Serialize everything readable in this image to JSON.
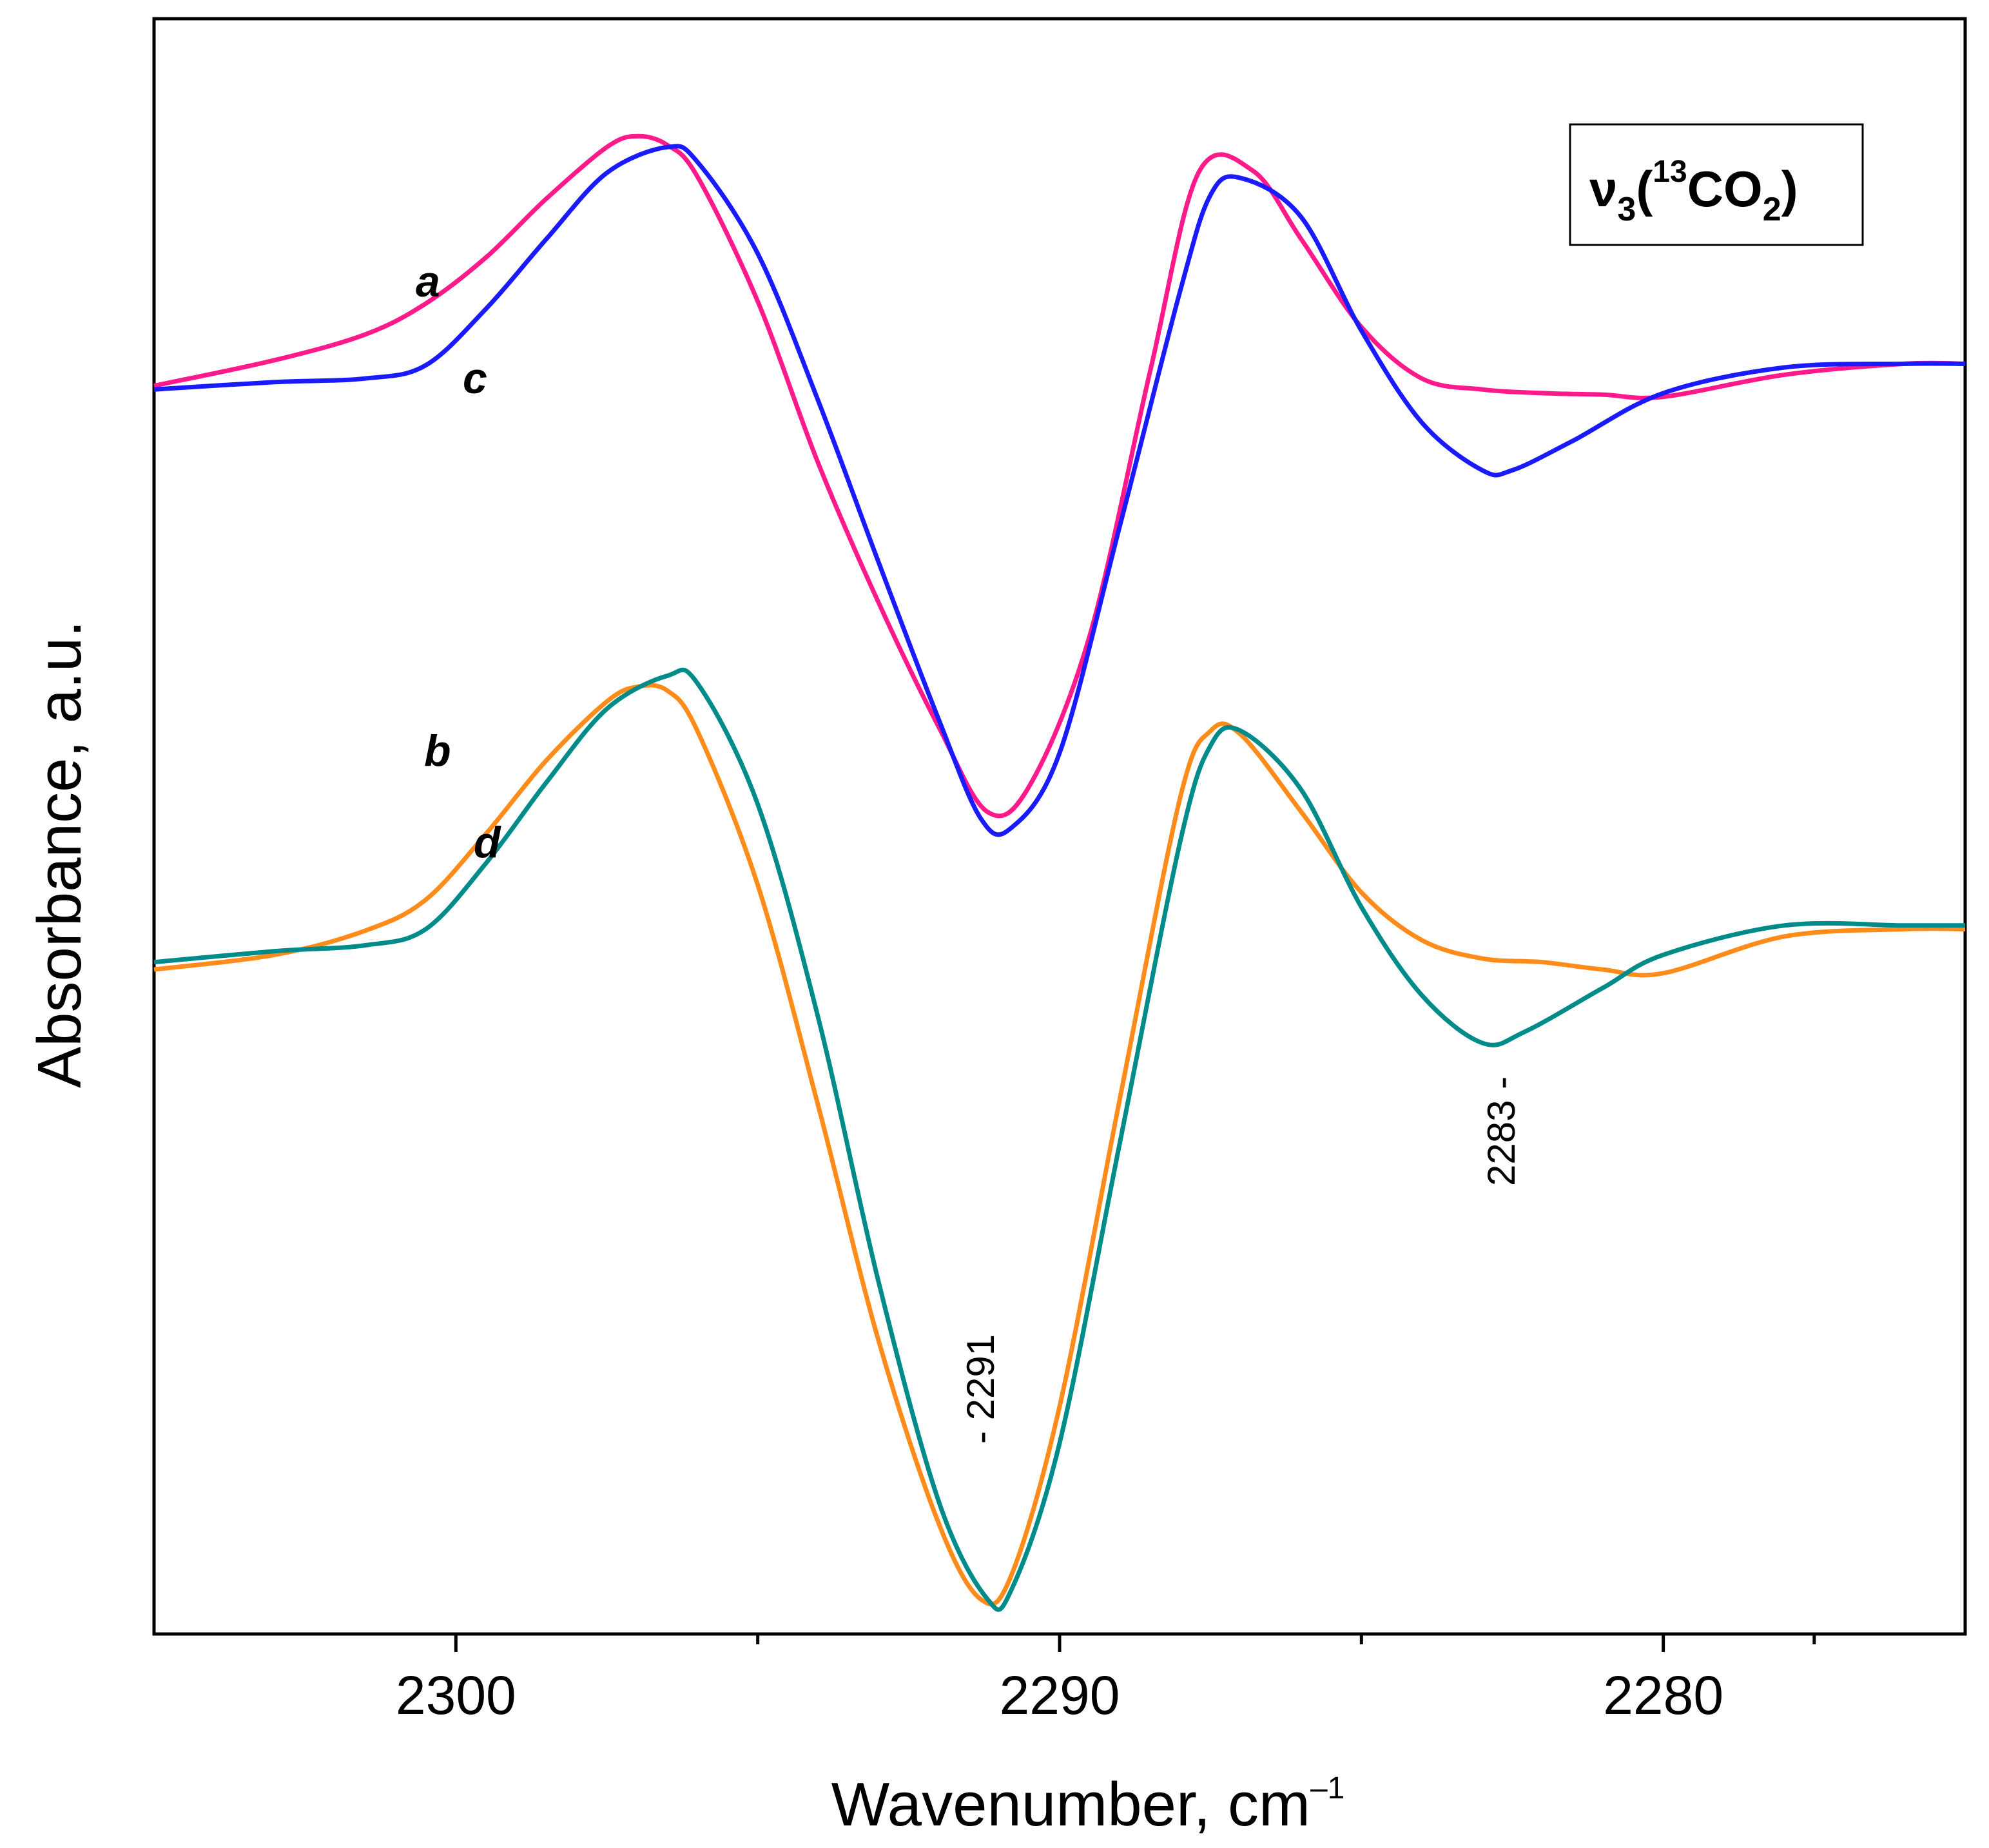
{
  "chart_data": {
    "type": "line",
    "title": "",
    "xlabel": "Wavenumber, cm",
    "xlabel_sup": "–1",
    "ylabel": "Absorbance, a.u.",
    "xlim": [
      2305,
      2275
    ],
    "x_reversed": true,
    "ylim": [
      -1.0,
      1.2
    ],
    "ticks": {
      "major": [
        2300,
        2290,
        2280
      ],
      "major_labels": [
        "2300",
        "2290",
        "2280"
      ],
      "minor": [
        2295,
        2285,
        2277.5
      ]
    },
    "legend_box": {
      "nu": "ν",
      "sub3": "3",
      "paren_open": "(",
      "sup13": "13",
      "co": "CO",
      "sub2": "2",
      "paren_close": ")"
    },
    "annotations": [
      {
        "text": "- 2291",
        "x": 2291,
        "rotated": true
      },
      {
        "text": "2283 -",
        "x": 2283,
        "rotated": true
      }
    ],
    "series": [
      {
        "name": "a",
        "color": "#ff1a8c",
        "x": [
          2305,
          2303,
          2301.5,
          2300.5,
          2299.5,
          2298.5,
          2297.5,
          2297,
          2296.5,
          2296,
          2295,
          2294,
          2293,
          2292,
          2291.2,
          2290.5,
          2289.5,
          2288.5,
          2287.7,
          2286.8,
          2286,
          2285,
          2284,
          2283,
          2282,
          2281,
          2280,
          2278,
          2276,
          2275
        ],
        "y": [
          0.7,
          0.735,
          0.77,
          0.812,
          0.875,
          0.955,
          1.025,
          1.04,
          1.028,
          0.985,
          0.815,
          0.595,
          0.405,
          0.235,
          0.12,
          0.155,
          0.36,
          0.72,
          0.99,
          0.993,
          0.9,
          0.78,
          0.71,
          0.695,
          0.69,
          0.688,
          0.685,
          0.715,
          0.73,
          0.73
        ]
      },
      {
        "name": "c",
        "color": "#1a1aff",
        "x": [
          2305,
          2303,
          2301.5,
          2300.5,
          2299.5,
          2298.5,
          2297.5,
          2296.5,
          2296,
          2295,
          2294,
          2293,
          2292,
          2291.3,
          2290.8,
          2290,
          2289,
          2288,
          2287.5,
          2287,
          2286,
          2285,
          2284,
          2283,
          2282.5,
          2281.5,
          2280,
          2278,
          2276,
          2275
        ],
        "y": [
          0.695,
          0.705,
          0.71,
          0.728,
          0.805,
          0.9,
          0.99,
          1.025,
          1.005,
          0.88,
          0.68,
          0.46,
          0.245,
          0.11,
          0.098,
          0.2,
          0.51,
          0.83,
          0.96,
          0.983,
          0.93,
          0.775,
          0.65,
          0.585,
          0.585,
          0.625,
          0.69,
          0.725,
          0.73,
          0.73
        ]
      },
      {
        "name": "b",
        "color": "#ff8c1a",
        "x": [
          2305,
          2303,
          2301.5,
          2300.5,
          2299.5,
          2298.5,
          2297.5,
          2297,
          2296.5,
          2296,
          2295,
          2294,
          2293,
          2292,
          2291.3,
          2290.8,
          2290,
          2289,
          2288,
          2287.5,
          2287,
          2286,
          2285,
          2284,
          2283,
          2282,
          2281,
          2280,
          2278,
          2276,
          2275
        ],
        "y": [
          -0.095,
          -0.075,
          -0.042,
          0.0,
          0.09,
          0.19,
          0.27,
          0.29,
          0.285,
          0.23,
          0.02,
          -0.28,
          -0.6,
          -0.85,
          -0.953,
          -0.92,
          -0.69,
          -0.27,
          0.14,
          0.23,
          0.225,
          0.12,
          0.01,
          -0.055,
          -0.08,
          -0.085,
          -0.095,
          -0.1,
          -0.05,
          -0.04,
          -0.04
        ]
      },
      {
        "name": "d",
        "color": "#008b8b",
        "x": [
          2305,
          2303,
          2301.5,
          2300.5,
          2299.5,
          2298.5,
          2297.5,
          2296.5,
          2296,
          2295,
          2294,
          2293,
          2292,
          2291.2,
          2290.8,
          2290,
          2289,
          2288,
          2287.5,
          2287,
          2286,
          2285,
          2284,
          2283,
          2282.3,
          2281,
          2280,
          2278,
          2276,
          2275
        ],
        "y": [
          -0.085,
          -0.07,
          -0.062,
          -0.04,
          0.05,
          0.16,
          0.26,
          0.305,
          0.295,
          0.13,
          -0.16,
          -0.52,
          -0.82,
          -0.952,
          -0.94,
          -0.74,
          -0.33,
          0.08,
          0.21,
          0.23,
          0.15,
          -0.01,
          -0.13,
          -0.195,
          -0.18,
          -0.12,
          -0.075,
          -0.035,
          -0.035,
          -0.035
        ]
      }
    ],
    "curve_labels": [
      {
        "series": "a",
        "text": "a"
      },
      {
        "series": "c",
        "text": "c"
      },
      {
        "series": "b",
        "text": "b"
      },
      {
        "series": "d",
        "text": "d"
      }
    ]
  }
}
